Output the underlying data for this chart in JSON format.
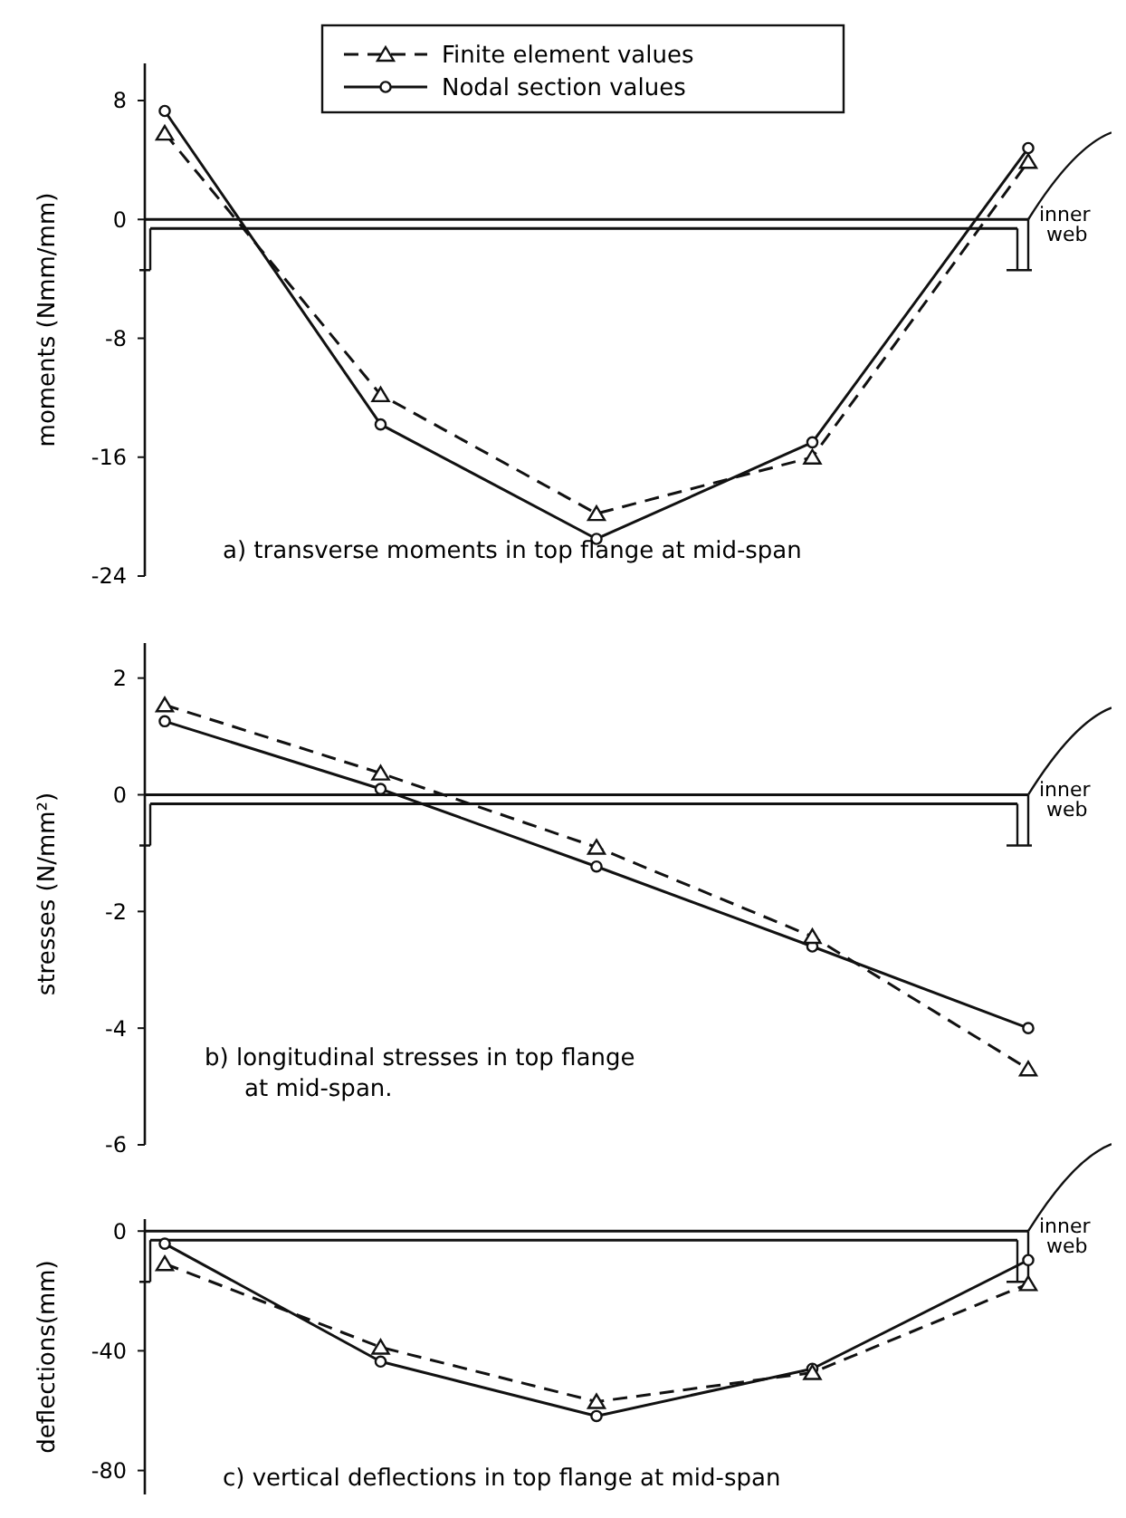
{
  "chart_data": [
    {
      "type": "line",
      "title": "a) transverse moments in top flange at mid-span",
      "ylabel": "moments (Nmm/mm)",
      "categories": [
        null,
        null,
        null,
        null,
        null
      ],
      "ylim": [
        -24,
        10.5
      ],
      "yticks": [
        8,
        0,
        -8,
        -16,
        -24
      ],
      "tick_labels": "y",
      "grid": false,
      "legend": "top",
      "ref_lines": [
        {
          "axis": "y",
          "value": 0,
          "label": "inner web"
        }
      ],
      "series": [
        {
          "name": "Finite element values",
          "color": "#111111",
          "values": [
            5.8,
            -11.8,
            -19.8,
            -16.0,
            3.9
          ],
          "marker": "triangle",
          "line_style": "dashed"
        },
        {
          "name": "Nodal section values",
          "color": "#111111",
          "values": [
            7.3,
            -13.8,
            -21.5,
            -15.0,
            4.8
          ],
          "marker": "circle",
          "line_style": "solid"
        }
      ]
    },
    {
      "type": "line",
      "title": "b) longitudinal stresses in top flange\nat mid-span.",
      "ylabel": "stresses (N/mm²)",
      "categories": [
        null,
        null,
        null,
        null,
        null
      ],
      "ylim": [
        -6,
        2.6
      ],
      "yticks": [
        2,
        0,
        -2,
        -4,
        -6
      ],
      "tick_labels": "y",
      "grid": false,
      "legend": false,
      "ref_lines": [
        {
          "axis": "y",
          "value": 0,
          "label": "inner web"
        }
      ],
      "series": [
        {
          "color": "#111111",
          "values": [
            1.54,
            0.37,
            -0.9,
            -2.43,
            -4.7
          ],
          "marker": "triangle",
          "line_style": "dashed"
        },
        {
          "color": "#111111",
          "values": [
            1.26,
            0.1,
            -1.23,
            -2.6,
            -4.0
          ],
          "marker": "circle",
          "line_style": "solid"
        }
      ]
    },
    {
      "type": "line",
      "title": "c) vertical deflections in top flange at mid-span",
      "ylabel": "deflections(mm)",
      "categories": [
        null,
        null,
        null,
        null,
        null
      ],
      "ylim": [
        -88,
        4
      ],
      "yticks": [
        0,
        -40,
        -80
      ],
      "tick_labels": "y",
      "grid": false,
      "legend": false,
      "ref_lines": [
        {
          "axis": "y",
          "value": 0,
          "label": "inner web"
        }
      ],
      "series": [
        {
          "color": "#111111",
          "values": [
            -10.9,
            -38.8,
            -57,
            -47.3,
            -17.6
          ],
          "marker": "triangle",
          "line_style": "dashed"
        },
        {
          "color": "#111111",
          "values": [
            -4.2,
            -43.6,
            -61.8,
            -46,
            -9.7
          ],
          "marker": "circle",
          "line_style": "solid"
        }
      ]
    }
  ]
}
